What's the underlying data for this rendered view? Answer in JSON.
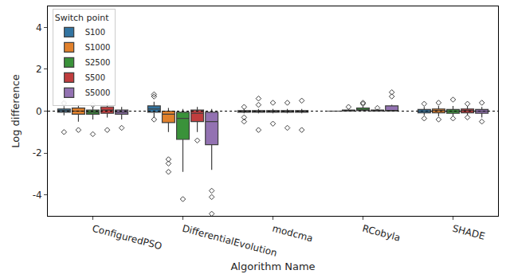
{
  "chart_data": {
    "type": "box",
    "x_label": "Algorithm Name",
    "y_label": "Log difference",
    "legend_title": "Switch point",
    "legend": "upper left",
    "grid": false,
    "ylim": [
      -5,
      5
    ],
    "yticks": [
      -4,
      -2,
      0,
      2,
      4
    ],
    "reference_line": {
      "y": 0,
      "line_style": "dotted"
    },
    "categories": [
      "ConfiguredPSO",
      "DifferentialEvolution",
      "modcma",
      "RCobyla",
      "SHADE"
    ],
    "series": [
      {
        "name": "S100",
        "color": "#3274a1",
        "values": [
          {
            "q1": -0.05,
            "median": 0.02,
            "q3": 0.1,
            "lower": -0.2,
            "upper": 0.2,
            "outliers": [
              -1.0,
              0.35,
              0.4
            ]
          },
          {
            "q1": -0.05,
            "median": 0.1,
            "q3": 0.25,
            "lower": -0.3,
            "upper": 0.45,
            "outliers": [
              0.7,
              0.8,
              -0.4
            ]
          },
          {
            "q1": -0.05,
            "median": 0.0,
            "q3": 0.02,
            "lower": -0.1,
            "upper": 0.1,
            "outliers": [
              -0.5,
              -0.3,
              0.2
            ]
          },
          {
            "q1": 0.0,
            "median": 0.0,
            "q3": 0.0,
            "lower": 0.0,
            "upper": 0.0,
            "outliers": []
          },
          {
            "q1": -0.08,
            "median": 0.0,
            "q3": 0.08,
            "lower": -0.2,
            "upper": 0.2,
            "outliers": [
              -0.35,
              0.35
            ]
          }
        ]
      },
      {
        "name": "S1000",
        "color": "#e1812c",
        "values": [
          {
            "q1": -0.15,
            "median": 0.0,
            "q3": 0.15,
            "lower": -0.5,
            "upper": 0.3,
            "outliers": [
              -0.9
            ]
          },
          {
            "q1": -0.55,
            "median": -0.15,
            "q3": 0.0,
            "lower": -1.0,
            "upper": 0.15,
            "outliers": [
              -2.3,
              -2.5,
              -2.9
            ]
          },
          {
            "q1": -0.05,
            "median": 0.0,
            "q3": 0.02,
            "lower": -0.1,
            "upper": 0.1,
            "outliers": [
              -0.9,
              0.3,
              0.6
            ]
          },
          {
            "q1": 0.0,
            "median": 0.02,
            "q3": 0.05,
            "lower": 0.0,
            "upper": 0.1,
            "outliers": [
              0.2
            ]
          },
          {
            "q1": -0.08,
            "median": 0.02,
            "q3": 0.1,
            "lower": -0.25,
            "upper": 0.25,
            "outliers": [
              -0.4,
              0.4
            ]
          }
        ]
      },
      {
        "name": "S2500",
        "color": "#3a923a",
        "values": [
          {
            "q1": -0.15,
            "median": -0.05,
            "q3": 0.05,
            "lower": -0.4,
            "upper": 0.2,
            "outliers": [
              -1.1,
              0.3
            ]
          },
          {
            "q1": -1.35,
            "median": -0.35,
            "q3": -0.05,
            "lower": -2.9,
            "upper": 0.1,
            "outliers": [
              -4.2
            ]
          },
          {
            "q1": -0.05,
            "median": 0.0,
            "q3": 0.02,
            "lower": -0.1,
            "upper": 0.1,
            "outliers": [
              -0.6,
              0.4
            ]
          },
          {
            "q1": 0.02,
            "median": 0.05,
            "q3": 0.15,
            "lower": 0.0,
            "upper": 0.25,
            "outliers": [
              0.35,
              0.4
            ]
          },
          {
            "q1": -0.1,
            "median": 0.0,
            "q3": 0.08,
            "lower": -0.25,
            "upper": 0.25,
            "outliers": [
              -0.35,
              0.55
            ]
          }
        ]
      },
      {
        "name": "S500",
        "color": "#c03d3e",
        "values": [
          {
            "q1": -0.1,
            "median": 0.05,
            "q3": 0.2,
            "lower": -0.3,
            "upper": 0.4,
            "outliers": [
              -0.9
            ]
          },
          {
            "q1": -0.5,
            "median": -0.1,
            "q3": 0.05,
            "lower": -1.0,
            "upper": 0.2,
            "outliers": [
              -1.4
            ]
          },
          {
            "q1": -0.05,
            "median": 0.0,
            "q3": 0.02,
            "lower": -0.1,
            "upper": 0.1,
            "outliers": [
              -0.8,
              0.4
            ]
          },
          {
            "q1": 0.0,
            "median": 0.02,
            "q3": 0.05,
            "lower": 0.0,
            "upper": 0.1,
            "outliers": [
              0.15
            ]
          },
          {
            "q1": -0.08,
            "median": 0.02,
            "q3": 0.1,
            "lower": -0.2,
            "upper": 0.25,
            "outliers": [
              -0.3,
              0.35
            ]
          }
        ]
      },
      {
        "name": "S5000",
        "color": "#9372b2",
        "values": [
          {
            "q1": -0.15,
            "median": -0.05,
            "q3": 0.05,
            "lower": -0.4,
            "upper": 0.2,
            "outliers": [
              -0.8
            ]
          },
          {
            "q1": -1.6,
            "median": -0.5,
            "q3": -0.05,
            "lower": -2.8,
            "upper": 0.1,
            "outliers": [
              -3.8,
              -4.1,
              -4.9
            ]
          },
          {
            "q1": -0.05,
            "median": 0.0,
            "q3": 0.02,
            "lower": -0.1,
            "upper": 0.1,
            "outliers": [
              -0.9,
              0.5
            ]
          },
          {
            "q1": 0.0,
            "median": 0.02,
            "q3": 0.25,
            "lower": 0.0,
            "upper": 0.3,
            "outliers": [
              0.7,
              0.9
            ]
          },
          {
            "q1": -0.1,
            "median": 0.0,
            "q3": 0.08,
            "lower": -0.3,
            "upper": 0.2,
            "outliers": [
              -0.5,
              0.4
            ]
          }
        ]
      }
    ]
  }
}
